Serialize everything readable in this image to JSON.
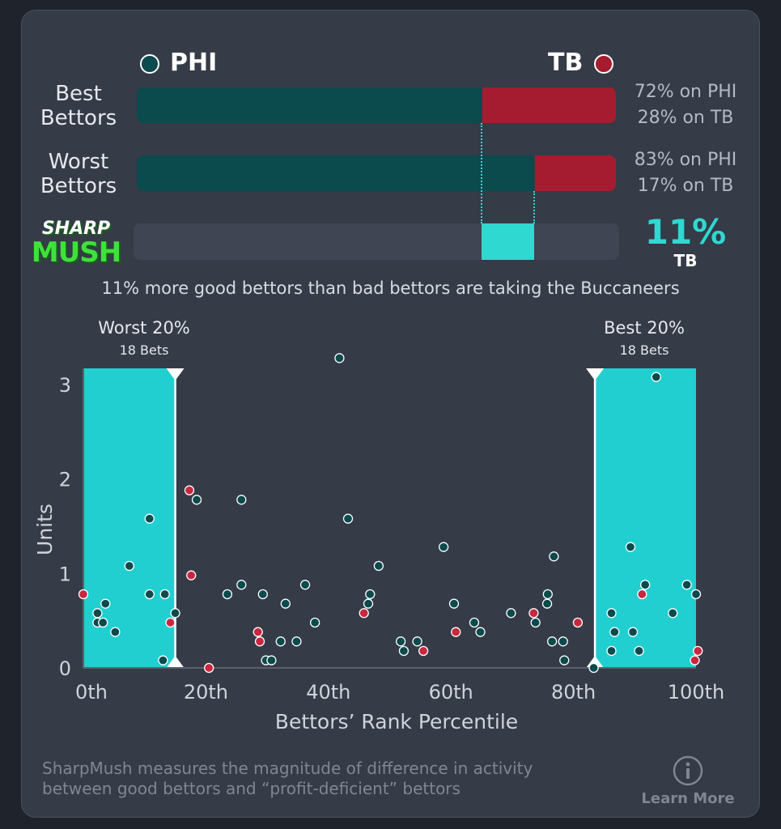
{
  "header": {
    "team_left": {
      "name": "PHI",
      "color": "#0b4a4d"
    },
    "team_right": {
      "name": "TB",
      "color": "#a51c30"
    }
  },
  "rows": [
    {
      "label_line1": "Best",
      "label_line2": "Bettors",
      "left_share": 0.72,
      "left_pct_text": "72% on PHI",
      "right_pct_text": "28% on TB"
    },
    {
      "label_line1": "Worst",
      "label_line2": "Bettors",
      "left_share": 0.83,
      "left_pct_text": "83% on PHI",
      "right_pct_text": "17% on TB"
    }
  ],
  "sharpmush": {
    "logo_line1": "SHARP",
    "logo_line2": "MUSH",
    "value_text": "11%",
    "team_text": "TB",
    "bar_start": 0.72,
    "bar_end": 0.83,
    "accent": "#2fd8d0",
    "caption": "11% more good bettors than bad bettors are taking the Buccaneers"
  },
  "chart_data": {
    "type": "scatter",
    "xlabel": "Bettors’ Rank Percentile",
    "ylabel": "Units",
    "xlim": [
      0,
      100
    ],
    "ylim": [
      0,
      3.3
    ],
    "x_ticks": [
      {
        "value": 0,
        "label": "0th"
      },
      {
        "value": 20,
        "label": "20th"
      },
      {
        "value": 40,
        "label": "40th"
      },
      {
        "value": 60,
        "label": "60th"
      },
      {
        "value": 80,
        "label": "80th"
      },
      {
        "value": 100,
        "label": "100th"
      }
    ],
    "y_ticks": [
      {
        "value": 0,
        "label": "0"
      },
      {
        "value": 1,
        "label": "1"
      },
      {
        "value": 2,
        "label": "2"
      },
      {
        "value": 3,
        "label": "3"
      }
    ],
    "regions": [
      {
        "name": "Worst 20%",
        "sublabel": "18 Bets",
        "x_start": 0,
        "x_end": 15
      },
      {
        "name": "Best 20%",
        "sublabel": "18 Bets",
        "x_start": 83.5,
        "x_end": 100
      }
    ],
    "series": [
      {
        "name": "PHI",
        "color": "#0b4a4d",
        "points": [
          [
            2.3,
            0.58
          ],
          [
            2.3,
            0.48
          ],
          [
            3.2,
            0.48
          ],
          [
            3.6,
            0.68
          ],
          [
            5.2,
            0.38
          ],
          [
            7.5,
            1.08
          ],
          [
            10.8,
            1.58
          ],
          [
            10.8,
            0.78
          ],
          [
            13.3,
            0.78
          ],
          [
            13.0,
            0.08
          ],
          [
            15.0,
            0.58
          ],
          [
            18.5,
            1.78
          ],
          [
            23.5,
            0.78
          ],
          [
            25.8,
            0.88
          ],
          [
            25.8,
            1.78
          ],
          [
            29.3,
            0.78
          ],
          [
            29.8,
            0.08
          ],
          [
            30.7,
            0.08
          ],
          [
            32.2,
            0.28
          ],
          [
            33.0,
            0.68
          ],
          [
            34.8,
            0.28
          ],
          [
            36.2,
            0.88
          ],
          [
            37.8,
            0.48
          ],
          [
            41.8,
            3.28
          ],
          [
            43.2,
            1.58
          ],
          [
            46.5,
            0.68
          ],
          [
            46.8,
            0.78
          ],
          [
            48.2,
            1.08
          ],
          [
            51.8,
            0.28
          ],
          [
            52.3,
            0.18
          ],
          [
            54.5,
            0.28
          ],
          [
            58.8,
            1.28
          ],
          [
            60.5,
            0.68
          ],
          [
            63.8,
            0.48
          ],
          [
            64.8,
            0.38
          ],
          [
            69.8,
            0.58
          ],
          [
            73.8,
            0.48
          ],
          [
            75.8,
            0.78
          ],
          [
            75.7,
            0.68
          ],
          [
            76.8,
            1.18
          ],
          [
            76.5,
            0.28
          ],
          [
            78.3,
            0.28
          ],
          [
            78.5,
            0.08
          ],
          [
            83.3,
            0.0
          ],
          [
            86.2,
            0.58
          ],
          [
            86.2,
            0.18
          ],
          [
            86.7,
            0.38
          ],
          [
            89.3,
            1.28
          ],
          [
            89.7,
            0.38
          ],
          [
            90.7,
            0.18
          ],
          [
            91.7,
            0.88
          ],
          [
            93.5,
            3.08
          ],
          [
            96.2,
            0.58
          ],
          [
            98.5,
            0.88
          ],
          [
            100.0,
            0.78
          ]
        ]
      },
      {
        "name": "TB",
        "color": "#c8283f",
        "points": [
          [
            0.0,
            0.78
          ],
          [
            14.2,
            0.48
          ],
          [
            17.3,
            1.88
          ],
          [
            17.6,
            0.98
          ],
          [
            20.5,
            0.0
          ],
          [
            28.5,
            0.38
          ],
          [
            28.8,
            0.28
          ],
          [
            45.8,
            0.58
          ],
          [
            55.5,
            0.18
          ],
          [
            60.8,
            0.38
          ],
          [
            73.5,
            0.58
          ],
          [
            80.7,
            0.48
          ],
          [
            91.2,
            0.78
          ],
          [
            99.8,
            0.08
          ],
          [
            100.3,
            0.18
          ]
        ]
      }
    ]
  },
  "footer": {
    "line1": "SharpMush measures the magnitude of difference in activity",
    "line2": "between good bettors and “profit-deficient” bettors",
    "info_icon": "info-circle-icon",
    "learn_more": "Learn More"
  }
}
